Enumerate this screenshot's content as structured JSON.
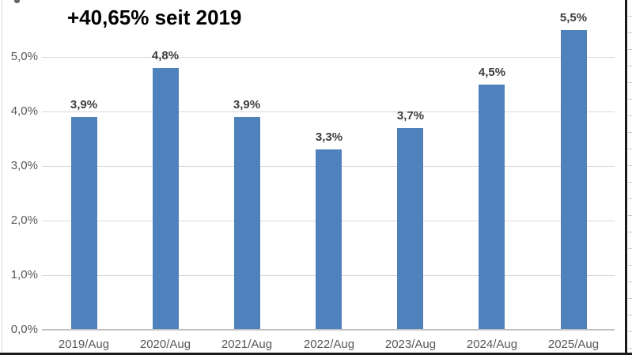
{
  "chart_data": {
    "type": "bar",
    "title": "+40,65% seit 2019",
    "categories": [
      "2019/Aug",
      "2020/Aug",
      "2021/Aug",
      "2022/Aug",
      "2023/Aug",
      "2024/Aug",
      "2025/Aug"
    ],
    "values": [
      3.9,
      4.8,
      3.9,
      3.3,
      3.7,
      4.5,
      5.5
    ],
    "value_labels": [
      "3,9%",
      "4,8%",
      "3,9%",
      "3,3%",
      "3,7%",
      "4,5%",
      "5,5%"
    ],
    "xlabel": "",
    "ylabel": "",
    "ylim": [
      0,
      5.5
    ],
    "y_tick_values": [
      0,
      1,
      2,
      3,
      4,
      5
    ],
    "y_tick_labels": [
      "0,0%",
      "1,0%",
      "2,0%",
      "3,0%",
      "4,0%",
      "5,0%"
    ],
    "grid": true,
    "legend_position": "none",
    "bar_color": "#4F81BD",
    "gridline_color": "#D9D9D9",
    "axis_line_color": "#BFBFBF",
    "axis_label_color": "#595959",
    "data_label_color": "#3D3D3D",
    "title_color": "#000000",
    "background_color": "#FFFFFF"
  }
}
